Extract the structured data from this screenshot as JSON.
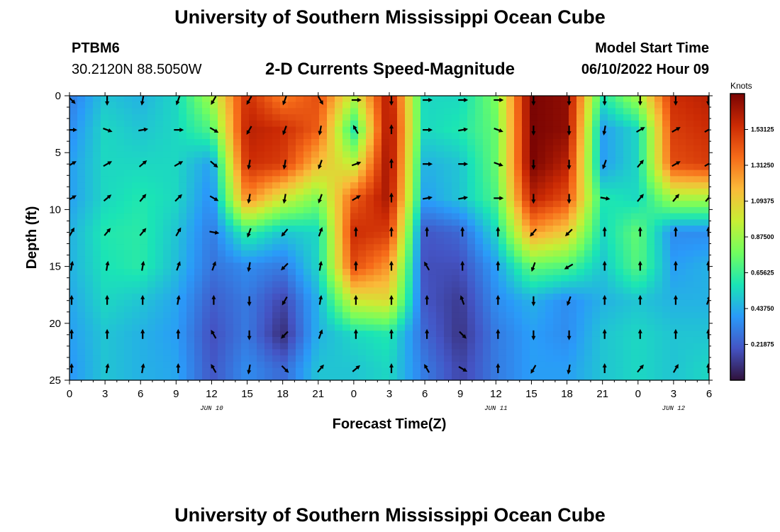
{
  "header": {
    "title": "University of Southern Mississippi Ocean Cube",
    "station": "PTBM6",
    "coords": "30.2120N  88.5050W",
    "subtitle": "2-D Currents Speed-Magnitude",
    "model_label": "Model Start Time",
    "model_time": "06/10/2022 Hour 09"
  },
  "footer": {
    "title": "University of Southern Mississippi Ocean Cube"
  },
  "colors": {
    "ramp": [
      "#30123b",
      "#4454c4",
      "#2a9af9",
      "#1ae4b6",
      "#71fe5f",
      "#c8ef34",
      "#faba39",
      "#f66b19",
      "#cb2a04",
      "#7a0403"
    ],
    "arrow": "#000000",
    "frame": "#000000"
  },
  "chart_data": {
    "type": "heatmap",
    "title": "2-D Currents Speed-Magnitude",
    "xlabel": "Forecast Time(Z)",
    "ylabel": "Depth (ft)",
    "x_ticks": [
      "0",
      "3",
      "6",
      "9",
      "12",
      "15",
      "18",
      "21",
      "0",
      "3",
      "6",
      "9",
      "12",
      "15",
      "18",
      "21",
      "0",
      "3",
      "6"
    ],
    "x_hours": [
      0,
      3,
      6,
      9,
      12,
      15,
      18,
      21,
      24,
      27,
      30,
      33,
      36,
      39,
      42,
      45,
      48,
      51,
      54
    ],
    "x_range_hours": [
      0,
      54
    ],
    "date_labels": [
      {
        "hour": 12,
        "text": "JUN 10"
      },
      {
        "hour": 36,
        "text": "JUN 11"
      },
      {
        "hour": 51,
        "text": "JUN 12"
      }
    ],
    "y_ticks": [
      0,
      5,
      10,
      15,
      20,
      25
    ],
    "y_range_ft": [
      0,
      25
    ],
    "y_inverted": true,
    "colorbar": {
      "label": "Knots",
      "ticks": [
        "1.53125",
        "1.31250",
        "1.09375",
        "0.87500",
        "0.65625",
        "0.43750",
        "0.21875"
      ],
      "tick_values": [
        1.53125,
        1.3125,
        1.09375,
        0.875,
        0.65625,
        0.4375,
        0.21875
      ],
      "range": [
        0,
        1.75
      ]
    },
    "speed_hours": [
      0,
      3,
      6,
      9,
      12,
      15,
      18,
      21,
      24,
      27,
      30,
      33,
      36,
      39,
      42,
      45,
      48,
      51,
      54
    ],
    "speed_depths": [
      0,
      3,
      6,
      9,
      12,
      15,
      18,
      21,
      24,
      25
    ],
    "speed_knots": [
      [
        0.3,
        0.5,
        0.45,
        0.55,
        0.9,
        1.55,
        1.3,
        1.45,
        0.95,
        1.65,
        0.55,
        0.55,
        0.8,
        1.75,
        1.7,
        0.6,
        0.9,
        1.55,
        1.6
      ],
      [
        0.35,
        0.55,
        0.5,
        0.55,
        0.7,
        1.6,
        1.55,
        1.4,
        0.6,
        1.7,
        0.55,
        0.6,
        0.75,
        1.75,
        1.7,
        0.4,
        0.55,
        1.5,
        1.55
      ],
      [
        0.4,
        0.55,
        0.55,
        0.55,
        0.4,
        1.55,
        1.5,
        1.15,
        0.95,
        1.7,
        0.45,
        0.5,
        0.75,
        1.75,
        1.6,
        0.4,
        0.55,
        1.45,
        1.5
      ],
      [
        0.4,
        0.55,
        0.6,
        0.55,
        0.35,
        1.3,
        1.0,
        0.8,
        1.4,
        1.65,
        0.4,
        0.5,
        0.7,
        1.6,
        1.45,
        0.6,
        0.55,
        0.9,
        0.9
      ],
      [
        0.45,
        0.6,
        0.62,
        0.5,
        0.3,
        0.65,
        0.5,
        0.55,
        1.55,
        1.5,
        0.2,
        0.25,
        0.55,
        1.25,
        1.1,
        0.55,
        0.75,
        0.35,
        0.35
      ],
      [
        0.45,
        0.58,
        0.62,
        0.48,
        0.28,
        0.35,
        0.3,
        0.55,
        1.45,
        1.25,
        0.18,
        0.18,
        0.4,
        0.75,
        0.7,
        0.5,
        0.72,
        0.4,
        0.45
      ],
      [
        0.42,
        0.55,
        0.5,
        0.42,
        0.22,
        0.3,
        0.15,
        0.45,
        1.0,
        1.05,
        0.2,
        0.12,
        0.35,
        0.45,
        0.35,
        0.45,
        0.5,
        0.45,
        0.45
      ],
      [
        0.4,
        0.5,
        0.45,
        0.4,
        0.18,
        0.3,
        0.08,
        0.45,
        0.55,
        0.6,
        0.25,
        0.1,
        0.3,
        0.4,
        0.35,
        0.5,
        0.55,
        0.5,
        0.5
      ],
      [
        0.38,
        0.5,
        0.45,
        0.42,
        0.2,
        0.35,
        0.25,
        0.5,
        0.5,
        0.55,
        0.3,
        0.15,
        0.3,
        0.4,
        0.4,
        0.5,
        0.55,
        0.5,
        0.55
      ],
      [
        0.38,
        0.5,
        0.45,
        0.42,
        0.2,
        0.35,
        0.25,
        0.5,
        0.5,
        0.55,
        0.3,
        0.15,
        0.3,
        0.4,
        0.4,
        0.5,
        0.55,
        0.5,
        0.55
      ]
    ],
    "vector_hours": [
      0,
      3,
      6,
      9,
      12,
      15,
      18,
      21,
      24,
      27,
      30,
      33,
      36,
      39,
      42,
      45,
      48,
      51,
      54
    ],
    "vector_depths": [
      0,
      3,
      6,
      9,
      12,
      15,
      18,
      21,
      24
    ],
    "vector_directions_deg": [
      [
        135,
        180,
        190,
        200,
        210,
        210,
        200,
        150,
        90,
        180,
        90,
        90,
        90,
        180,
        180,
        180,
        180,
        180,
        180
      ],
      [
        90,
        110,
        80,
        90,
        120,
        210,
        200,
        190,
        330,
        0,
        90,
        80,
        110,
        180,
        180,
        190,
        60,
        60,
        60
      ],
      [
        60,
        60,
        50,
        60,
        130,
        190,
        190,
        200,
        70,
        0,
        90,
        90,
        110,
        180,
        180,
        200,
        40,
        60,
        60
      ],
      [
        60,
        50,
        40,
        45,
        120,
        190,
        190,
        200,
        60,
        0,
        80,
        80,
        90,
        180,
        180,
        100,
        40,
        40,
        40
      ],
      [
        30,
        40,
        40,
        30,
        100,
        200,
        220,
        20,
        0,
        0,
        0,
        0,
        0,
        220,
        225,
        0,
        0,
        0,
        0
      ],
      [
        10,
        10,
        10,
        20,
        20,
        190,
        225,
        10,
        0,
        0,
        330,
        0,
        0,
        200,
        240,
        0,
        0,
        0,
        0
      ],
      [
        0,
        0,
        0,
        10,
        0,
        180,
        210,
        10,
        0,
        0,
        0,
        340,
        0,
        180,
        200,
        0,
        0,
        0,
        20
      ],
      [
        0,
        0,
        0,
        0,
        330,
        180,
        225,
        20,
        0,
        0,
        0,
        135,
        0,
        180,
        180,
        0,
        0,
        0,
        0
      ],
      [
        0,
        10,
        10,
        0,
        330,
        190,
        135,
        40,
        50,
        0,
        330,
        120,
        0,
        210,
        190,
        0,
        40,
        30,
        0
      ]
    ]
  }
}
